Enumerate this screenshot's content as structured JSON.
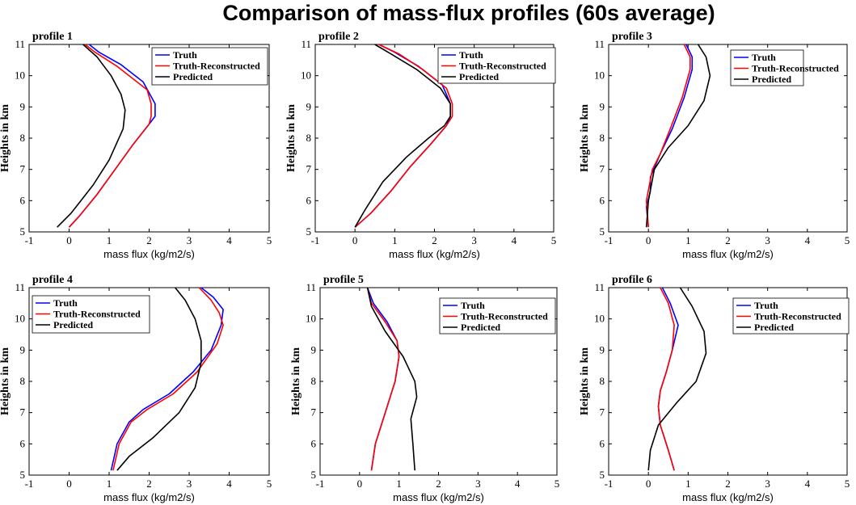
{
  "figure": {
    "title": "Comparison of mass-flux profiles (60s average)"
  },
  "colors": {
    "truth": "#0000ff",
    "reconstructed": "#ff0000",
    "predicted": "#000000"
  },
  "chart_data": [
    {
      "type": "line",
      "label": "profile 1",
      "xlabel": "mass flux (kg/m2/s)",
      "ylabel": "Heights in km",
      "xlim": [
        -1,
        5
      ],
      "ylim": [
        5,
        11
      ],
      "xticks": [
        -1,
        0,
        1,
        2,
        3,
        4,
        5
      ],
      "yticks": [
        5,
        6,
        7,
        8,
        9,
        10,
        11
      ],
      "legend": "top-right",
      "series": [
        {
          "name": "Truth",
          "color": "#0000ff",
          "x": [
            0.0,
            0.25,
            0.7,
            1.15,
            1.6,
            2.0,
            2.15,
            2.15,
            1.85,
            1.3,
            0.75,
            0.5
          ],
          "y": [
            5.15,
            5.5,
            6.2,
            7.0,
            7.8,
            8.45,
            8.7,
            9.1,
            9.8,
            10.35,
            10.75,
            11.0
          ]
        },
        {
          "name": "Truth-Reconstructed",
          "color": "#ff0000",
          "x": [
            0.0,
            0.25,
            0.7,
            1.15,
            1.6,
            2.0,
            2.05,
            2.05,
            1.95,
            1.2,
            0.65,
            0.4
          ],
          "y": [
            5.15,
            5.5,
            6.2,
            7.0,
            7.8,
            8.45,
            8.7,
            9.1,
            9.55,
            10.3,
            10.75,
            11.0
          ]
        },
        {
          "name": "Predicted",
          "color": "#000000",
          "x": [
            -0.3,
            0.05,
            0.6,
            1.0,
            1.35,
            1.4,
            1.3,
            1.05,
            0.7,
            0.35
          ],
          "y": [
            5.15,
            5.6,
            6.5,
            7.3,
            8.3,
            8.9,
            9.4,
            10.0,
            10.6,
            11.0
          ]
        }
      ]
    },
    {
      "type": "line",
      "label": "profile 2",
      "xlabel": "mass flux (kg/m2/s)",
      "ylabel": "Heights in km",
      "xlim": [
        -1,
        5
      ],
      "ylim": [
        5,
        11
      ],
      "xticks": [
        -1,
        0,
        1,
        2,
        3,
        4,
        5
      ],
      "yticks": [
        5,
        6,
        7,
        8,
        9,
        10,
        11
      ],
      "legend": "top-right",
      "series": [
        {
          "name": "Truth",
          "color": "#0000ff",
          "x": [
            0.0,
            0.4,
            0.9,
            1.4,
            1.9,
            2.3,
            2.4,
            2.4,
            2.2,
            1.6,
            1.0,
            0.6
          ],
          "y": [
            5.15,
            5.6,
            6.3,
            7.1,
            7.8,
            8.4,
            8.7,
            9.1,
            9.7,
            10.3,
            10.75,
            11.0
          ]
        },
        {
          "name": "Truth-Reconstructed",
          "color": "#ff0000",
          "x": [
            0.0,
            0.4,
            0.9,
            1.4,
            1.9,
            2.3,
            2.45,
            2.45,
            2.3,
            1.7,
            1.1,
            0.6
          ],
          "y": [
            5.15,
            5.6,
            6.3,
            7.1,
            7.8,
            8.4,
            8.7,
            9.1,
            9.6,
            10.2,
            10.7,
            11.0
          ]
        },
        {
          "name": "Predicted",
          "color": "#000000",
          "x": [
            0.0,
            0.25,
            0.7,
            1.3,
            1.85,
            2.25,
            2.4,
            2.4,
            2.15,
            1.55,
            0.9,
            0.5
          ],
          "y": [
            5.15,
            5.7,
            6.6,
            7.4,
            8.0,
            8.4,
            8.7,
            9.1,
            9.6,
            10.2,
            10.7,
            11.0
          ]
        }
      ]
    },
    {
      "type": "line",
      "label": "profile 3",
      "xlabel": "mass flux (kg/m2/s)",
      "ylabel": "Heights in km",
      "xlim": [
        -1,
        5
      ],
      "ylim": [
        5,
        11
      ],
      "xticks": [
        -1,
        0,
        1,
        2,
        3,
        4,
        5
      ],
      "yticks": [
        5,
        6,
        7,
        8,
        9,
        10,
        11
      ],
      "legend": "top-right",
      "series": [
        {
          "name": "Truth",
          "color": "#0000ff",
          "x": [
            0.0,
            -0.05,
            0.05,
            0.05,
            0.3,
            0.6,
            0.9,
            1.1,
            1.1,
            0.95
          ],
          "y": [
            5.15,
            5.8,
            6.3,
            6.75,
            7.5,
            8.3,
            9.3,
            10.2,
            10.6,
            11.0
          ]
        },
        {
          "name": "Truth-Reconstructed",
          "color": "#ff0000",
          "x": [
            0.0,
            -0.05,
            0.1,
            0.3,
            0.55,
            0.85,
            1.05,
            1.05,
            0.9
          ],
          "y": [
            5.15,
            6.0,
            7.0,
            7.5,
            8.3,
            9.3,
            10.2,
            10.6,
            11.0
          ]
        },
        {
          "name": "Predicted",
          "color": "#000000",
          "x": [
            -0.05,
            0.0,
            0.15,
            0.5,
            1.0,
            1.4,
            1.55,
            1.45,
            1.25
          ],
          "y": [
            5.15,
            6.0,
            7.0,
            7.7,
            8.4,
            9.2,
            10.0,
            10.6,
            11.0
          ]
        }
      ]
    },
    {
      "type": "line",
      "label": "profile 4",
      "xlabel": "mass flux (kg/m2/s)",
      "ylabel": "Heights in km",
      "xlim": [
        -1,
        5
      ],
      "ylim": [
        5,
        11
      ],
      "xticks": [
        -1,
        0,
        1,
        2,
        3,
        4,
        5
      ],
      "yticks": [
        5,
        6,
        7,
        8,
        9,
        10,
        11
      ],
      "legend": "top-left",
      "series": [
        {
          "name": "Truth",
          "color": "#0000ff",
          "x": [
            1.05,
            1.2,
            1.5,
            1.85,
            2.5,
            3.1,
            3.55,
            3.8,
            3.85,
            3.6,
            3.3
          ],
          "y": [
            5.15,
            6.0,
            6.7,
            7.1,
            7.6,
            8.3,
            9.0,
            9.8,
            10.3,
            10.7,
            11.0
          ]
        },
        {
          "name": "Truth-Reconstructed",
          "color": "#ff0000",
          "x": [
            1.1,
            1.25,
            1.55,
            1.95,
            2.6,
            3.2,
            3.7,
            3.85,
            3.75,
            3.55,
            3.25
          ],
          "y": [
            5.15,
            6.0,
            6.7,
            7.1,
            7.6,
            8.3,
            9.2,
            9.8,
            10.2,
            10.6,
            11.0
          ]
        },
        {
          "name": "Predicted",
          "color": "#000000",
          "x": [
            1.2,
            1.5,
            2.1,
            2.75,
            3.15,
            3.3,
            3.3,
            3.15,
            2.9,
            2.65
          ],
          "y": [
            5.15,
            5.6,
            6.2,
            7.0,
            7.8,
            8.6,
            9.3,
            10.0,
            10.6,
            11.0
          ]
        }
      ]
    },
    {
      "type": "line",
      "label": "profile 5",
      "xlabel": "mass flux (kg/m2/s)",
      "ylabel": "Heights in km",
      "xlim": [
        -1,
        5
      ],
      "ylim": [
        5,
        11
      ],
      "xticks": [
        -1,
        0,
        1,
        2,
        3,
        4,
        5
      ],
      "yticks": [
        5,
        6,
        7,
        8,
        9,
        10,
        11
      ],
      "legend": "top-right",
      "series": [
        {
          "name": "Truth",
          "color": "#0000ff",
          "x": [
            0.3,
            0.4,
            0.65,
            0.9,
            1.0,
            0.95,
            0.7,
            0.35,
            0.2
          ],
          "y": [
            5.15,
            6.0,
            7.0,
            8.0,
            8.8,
            9.3,
            9.9,
            10.5,
            11.0
          ]
        },
        {
          "name": "Truth-Reconstructed",
          "color": "#ff0000",
          "x": [
            0.3,
            0.4,
            0.65,
            0.9,
            1.0,
            0.95,
            0.65,
            0.3,
            0.2
          ],
          "y": [
            5.15,
            6.0,
            7.0,
            8.0,
            8.8,
            9.3,
            9.9,
            10.5,
            11.0
          ]
        },
        {
          "name": "Predicted",
          "color": "#000000",
          "x": [
            1.4,
            1.35,
            1.3,
            1.45,
            1.4,
            1.1,
            0.65,
            0.3,
            0.2
          ],
          "y": [
            5.15,
            6.0,
            6.8,
            7.5,
            8.0,
            8.8,
            9.6,
            10.4,
            11.0
          ]
        }
      ]
    },
    {
      "type": "line",
      "label": "profile 6",
      "xlabel": "mass flux (kg/m2/s)",
      "ylabel": "Heights in km",
      "xlim": [
        -1,
        5
      ],
      "ylim": [
        5,
        11
      ],
      "xticks": [
        -1,
        0,
        1,
        2,
        3,
        4,
        5
      ],
      "yticks": [
        5,
        6,
        7,
        8,
        9,
        10,
        11
      ],
      "legend": "top-right",
      "series": [
        {
          "name": "Truth",
          "color": "#0000ff",
          "x": [
            0.65,
            0.5,
            0.3,
            0.25,
            0.3,
            0.45,
            0.6,
            0.75,
            0.55,
            0.35
          ],
          "y": [
            5.15,
            5.8,
            6.6,
            7.2,
            7.7,
            8.3,
            9.0,
            9.8,
            10.5,
            11.0
          ]
        },
        {
          "name": "Truth-Reconstructed",
          "color": "#ff0000",
          "x": [
            0.65,
            0.5,
            0.3,
            0.25,
            0.3,
            0.45,
            0.6,
            0.65,
            0.5,
            0.3
          ],
          "y": [
            5.15,
            5.8,
            6.6,
            7.2,
            7.7,
            8.3,
            9.0,
            9.8,
            10.5,
            11.0
          ]
        },
        {
          "name": "Predicted",
          "color": "#000000",
          "x": [
            0.0,
            0.05,
            0.25,
            0.7,
            1.2,
            1.45,
            1.4,
            1.1,
            0.8
          ],
          "y": [
            5.15,
            5.8,
            6.6,
            7.3,
            8.0,
            8.9,
            9.6,
            10.4,
            11.0
          ]
        }
      ]
    }
  ]
}
